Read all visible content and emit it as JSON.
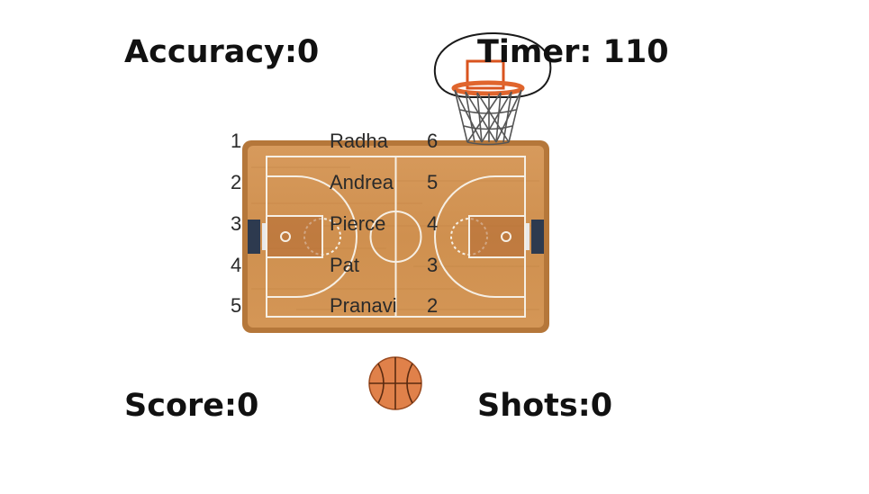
{
  "hud": {
    "accuracy_label": "Accuracy:0",
    "timer_label": "Timer: 110",
    "score_label": "Score:0",
    "shots_label": "Shots:0"
  },
  "leaderboard": [
    {
      "rank": "1",
      "name": "Radha",
      "points": "6"
    },
    {
      "rank": "2",
      "name": "Andrea",
      "points": "5"
    },
    {
      "rank": "3",
      "name": "Pierce",
      "points": "4"
    },
    {
      "rank": "4",
      "name": "Pat",
      "points": "3"
    },
    {
      "rank": "5",
      "name": "Pranavi",
      "points": "2"
    }
  ],
  "sprites": {
    "hoop": "basketball-hoop-icon",
    "ball": "basketball-icon",
    "court": "basketball-court-image"
  },
  "colors": {
    "court_wood": "#c98a4b",
    "court_border": "#a8692f",
    "lines": "#f6efe4",
    "ball": "#e0814a",
    "rim": "#e0652d",
    "text": "#111111"
  }
}
